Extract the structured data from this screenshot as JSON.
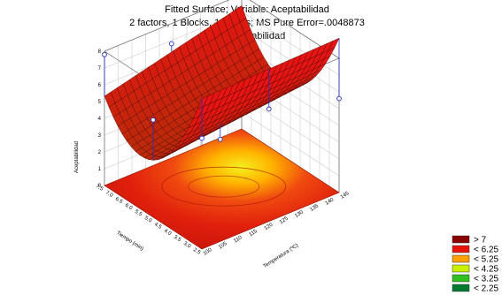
{
  "chart_data": {
    "type": "surface3d",
    "title": "Fitted Surface; Variable: Aceptabilidad",
    "subtitle": "2 factors, 1 Blocks, 13 Runs; MS Pure Error=.0048873",
    "dv_label": "DV: Aceptabilidad",
    "zlabel": "Aceptabilidad",
    "xlabel": "Tiempo (min)",
    "ylabel": "Temperatura (ºC)",
    "zlim": [
      0,
      8
    ],
    "z_ticks": [
      "8",
      "7",
      "6",
      "5",
      "4",
      "3",
      "2",
      "1",
      "0"
    ],
    "x_ticks": [
      "7.5",
      "7.0",
      "6.5",
      "6.0",
      "5.5",
      "5.0",
      "4.5",
      "4.0",
      "3.5",
      "3.0",
      "2.5"
    ],
    "y_ticks": [
      "100",
      "105",
      "110",
      "115",
      "120",
      "125",
      "130",
      "135",
      "140",
      "145"
    ],
    "xlim": [
      2.5,
      7.5
    ],
    "ylim": [
      100,
      145
    ],
    "surface_color": "#cc1a0a",
    "observed_points": [
      {
        "x": 7.5,
        "y": 100,
        "z": 6.6
      },
      {
        "x": 5.0,
        "y": 100,
        "z": 5.8
      },
      {
        "x": 2.5,
        "y": 100,
        "z": 7.8
      },
      {
        "x": 7.5,
        "y": 122,
        "z": 6.7
      },
      {
        "x": 5.0,
        "y": 122,
        "z": 3.0
      },
      {
        "x": 2.5,
        "y": 122,
        "z": 6.8
      },
      {
        "x": 7.5,
        "y": 145,
        "z": 5.6
      }
    ],
    "legend": [
      {
        "label": "> 7",
        "color": "#8b0000"
      },
      {
        "label": "< 6.25",
        "color": "#e8140a"
      },
      {
        "label": "< 5.25",
        "color": "#ffa000"
      },
      {
        "label": "< 4.25",
        "color": "#c8f000"
      },
      {
        "label": "< 3.25",
        "color": "#30c020"
      },
      {
        "label": "< 2.25",
        "color": "#007a30"
      }
    ],
    "legend_position": "bottom-right",
    "grid": true
  }
}
